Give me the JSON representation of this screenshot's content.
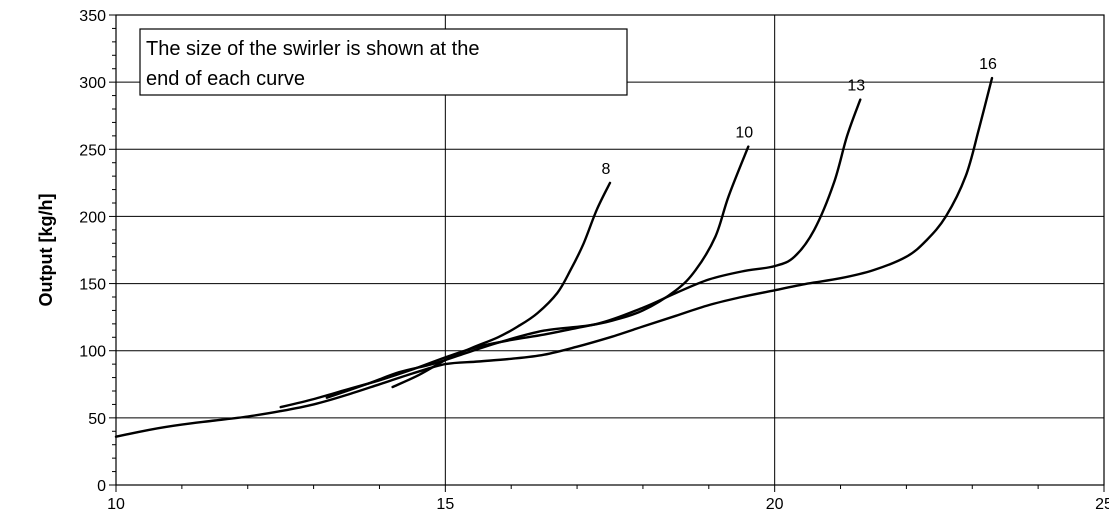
{
  "chart_data": {
    "type": "line",
    "title": "",
    "xlabel": "",
    "ylabel": "Output [kg/h]",
    "xlim": [
      10,
      25
    ],
    "ylim": [
      0,
      350
    ],
    "x_ticks": [
      10,
      15,
      20,
      25
    ],
    "y_ticks": [
      0,
      50,
      100,
      150,
      200,
      250,
      300,
      350
    ],
    "grid": true,
    "legend": "none",
    "annotation_lines": [
      "The size of the swirler is shown at the",
      "end of each curve"
    ],
    "series": [
      {
        "name": "8",
        "color": "#000000",
        "points": [
          [
            14.2,
            73
          ],
          [
            14.6,
            82
          ],
          [
            15.0,
            93
          ],
          [
            15.4,
            102
          ],
          [
            15.8,
            110
          ],
          [
            16.1,
            118
          ],
          [
            16.4,
            128
          ],
          [
            16.7,
            143
          ],
          [
            16.9,
            160
          ],
          [
            17.1,
            180
          ],
          [
            17.3,
            205
          ],
          [
            17.5,
            225
          ]
        ]
      },
      {
        "name": "10",
        "color": "#000000",
        "points": [
          [
            12.5,
            58
          ],
          [
            13.0,
            64
          ],
          [
            13.5,
            71
          ],
          [
            14.0,
            78
          ],
          [
            14.5,
            86
          ],
          [
            15.0,
            95
          ],
          [
            15.5,
            103
          ],
          [
            16.0,
            108
          ],
          [
            16.5,
            112
          ],
          [
            17.0,
            117
          ],
          [
            17.5,
            122
          ],
          [
            18.0,
            130
          ],
          [
            18.5,
            145
          ],
          [
            18.8,
            160
          ],
          [
            19.1,
            185
          ],
          [
            19.3,
            215
          ],
          [
            19.6,
            252
          ]
        ]
      },
      {
        "name": "13",
        "color": "#000000",
        "points": [
          [
            13.2,
            65
          ],
          [
            13.8,
            75
          ],
          [
            14.3,
            84
          ],
          [
            14.8,
            90
          ],
          [
            15.3,
            98
          ],
          [
            15.8,
            106
          ],
          [
            16.5,
            115
          ],
          [
            17.3,
            120
          ],
          [
            18.0,
            132
          ],
          [
            18.5,
            143
          ],
          [
            19.0,
            153
          ],
          [
            19.5,
            159
          ],
          [
            20.0,
            163
          ],
          [
            20.3,
            170
          ],
          [
            20.6,
            190
          ],
          [
            20.9,
            225
          ],
          [
            21.1,
            260
          ],
          [
            21.3,
            287
          ]
        ]
      },
      {
        "name": "16",
        "color": "#000000",
        "points": [
          [
            10.0,
            36
          ],
          [
            10.5,
            41
          ],
          [
            11.0,
            45
          ],
          [
            11.5,
            48
          ],
          [
            12.0,
            51
          ],
          [
            12.5,
            55
          ],
          [
            13.0,
            60
          ],
          [
            13.5,
            67
          ],
          [
            14.0,
            75
          ],
          [
            14.5,
            83
          ],
          [
            15.0,
            90
          ],
          [
            15.5,
            92
          ],
          [
            16.0,
            94
          ],
          [
            16.5,
            97
          ],
          [
            17.0,
            103
          ],
          [
            17.5,
            110
          ],
          [
            18.0,
            118
          ],
          [
            18.5,
            126
          ],
          [
            19.0,
            134
          ],
          [
            19.5,
            140
          ],
          [
            20.0,
            145
          ],
          [
            20.5,
            150
          ],
          [
            21.0,
            154
          ],
          [
            21.5,
            160
          ],
          [
            22.0,
            170
          ],
          [
            22.3,
            182
          ],
          [
            22.6,
            200
          ],
          [
            22.9,
            230
          ],
          [
            23.1,
            265
          ],
          [
            23.3,
            303
          ]
        ]
      }
    ]
  }
}
